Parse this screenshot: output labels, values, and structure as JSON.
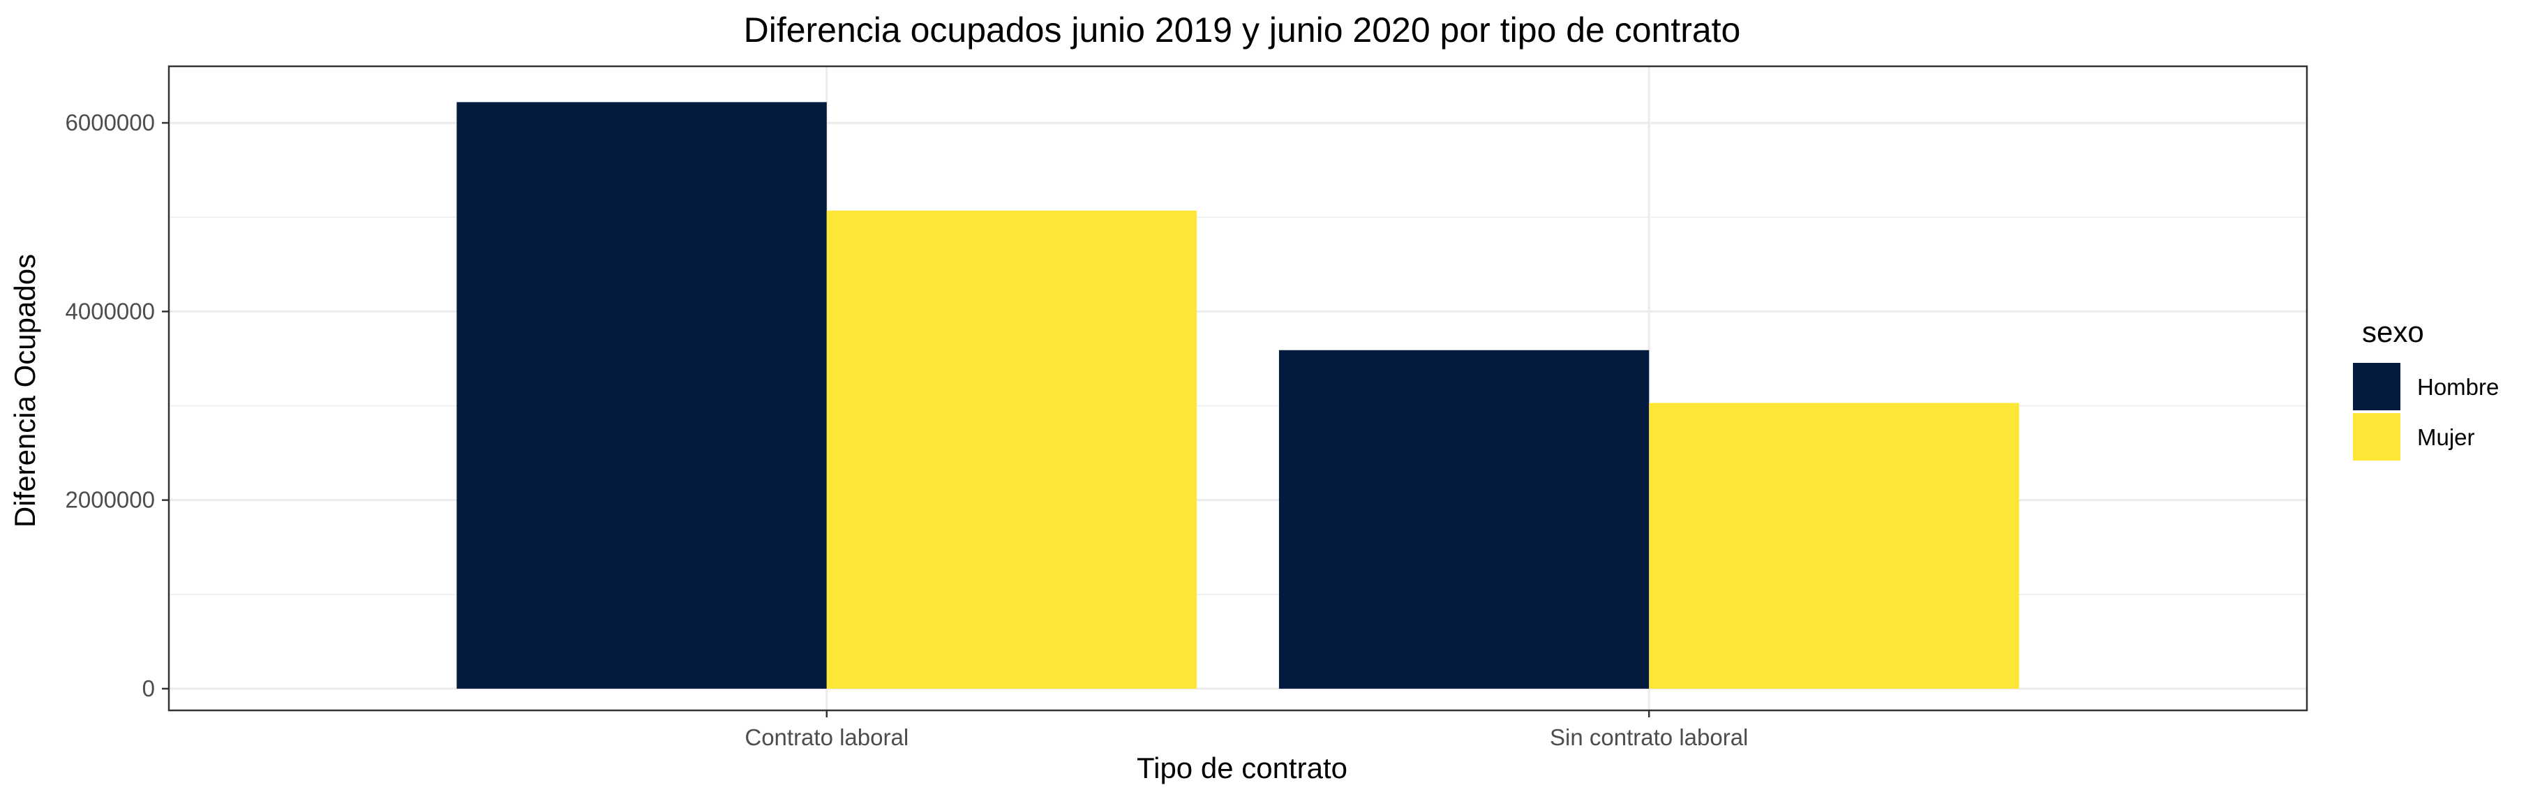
{
  "chart_data": {
    "type": "bar",
    "title": "Diferencia ocupados junio 2019 y junio 2020 por tipo de contrato",
    "xlabel": "Tipo de contrato",
    "ylabel": "Diferencia Ocupados",
    "categories": [
      "Contrato laboral",
      "Sin contrato laboral"
    ],
    "series": [
      {
        "name": "Hombre",
        "color": "#041a3f",
        "values": [
          6220000,
          3590000
        ]
      },
      {
        "name": "Mujer",
        "color": "#fde636",
        "values": [
          5070000,
          3030000
        ]
      }
    ],
    "ylim": [
      -230000,
      6600000
    ],
    "yticks": [
      0,
      2000000,
      4000000,
      6000000
    ],
    "ytick_labels": [
      "0",
      "2000000",
      "4000000",
      "6000000"
    ],
    "grid": true,
    "legend": {
      "title": "sexo",
      "position": "right"
    }
  }
}
